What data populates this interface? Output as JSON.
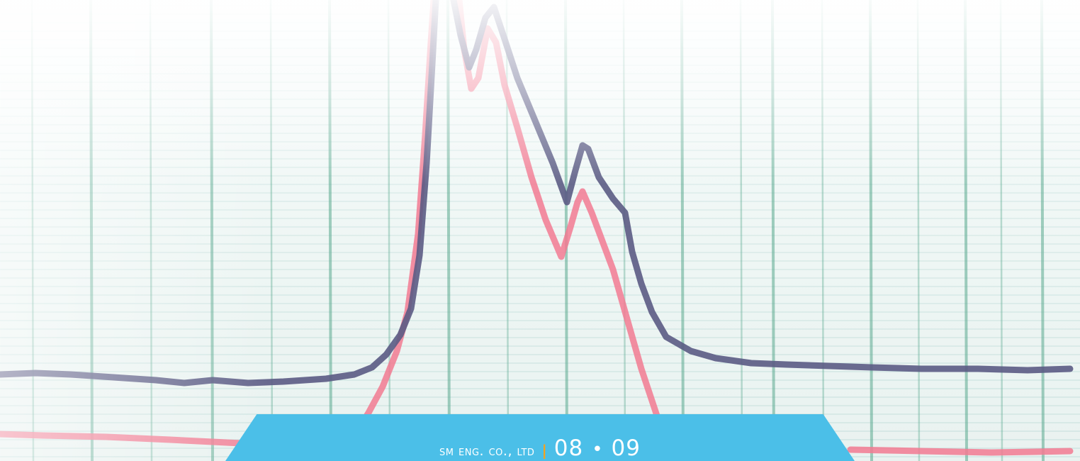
{
  "colors": {
    "banner": "#4bbfe8",
    "grid_major": "#5aa98f",
    "grid_minor": "#b9d9d6",
    "trace_dark": "#5b5b84",
    "trace_red": "#f27a92",
    "separator": "#f6a21c"
  },
  "footer": {
    "company": "SM ENG. CO., LTD",
    "separator": "|",
    "page_left": "08",
    "page_dot": "•",
    "page_right": "09"
  }
}
